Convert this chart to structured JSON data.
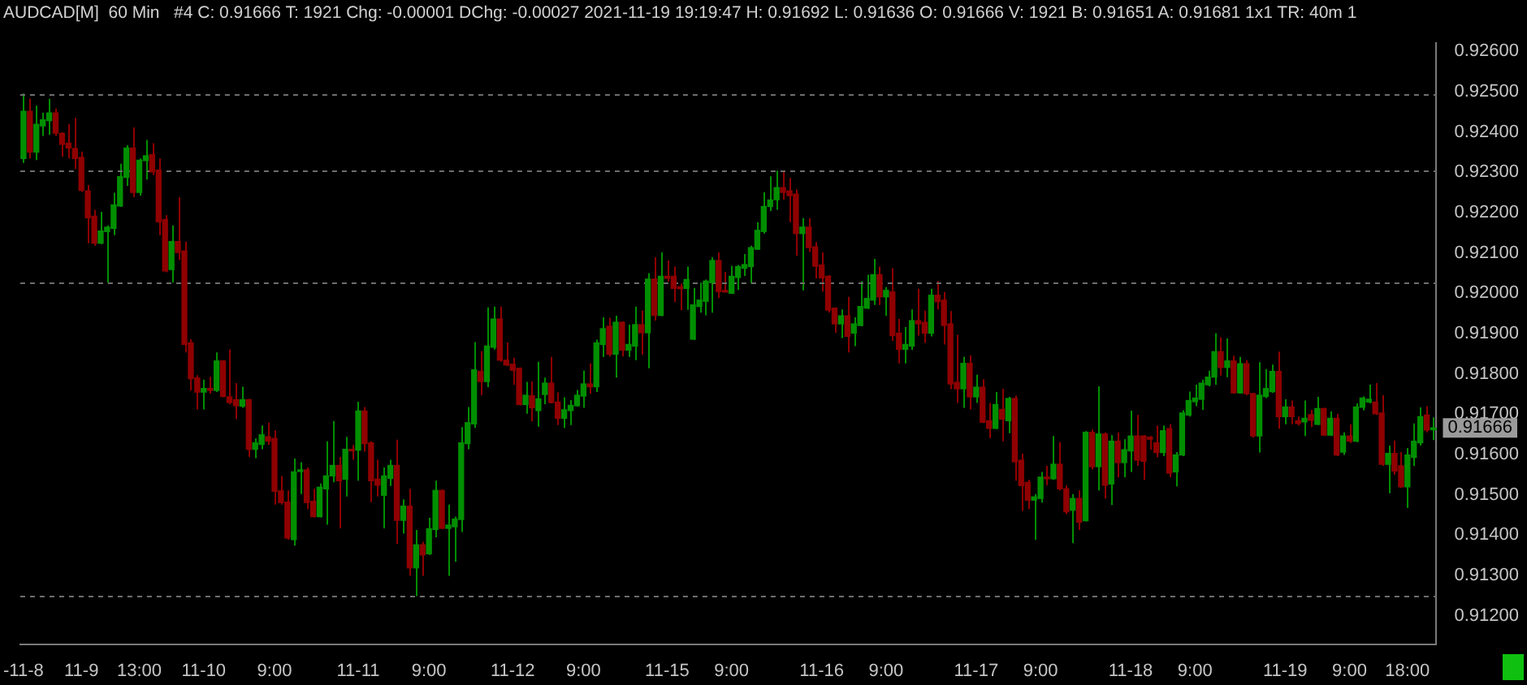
{
  "chart_data": {
    "type": "candlestick",
    "title": "AUDCAD[M]  60 Min   #4 C: 0.91666 T: 1921 Chg: -0.00001 DChg: -0.00027 2021-11-19 19:19:47 H: 0.91692 L: 0.91636 O: 0.91666 V: 1921 B: 0.91651 A: 0.91681 1x1 TR: 40m 1",
    "categories": [
      "-11-8",
      null,
      null,
      null,
      null,
      null,
      null,
      null,
      null,
      "11-9",
      null,
      null,
      null,
      null,
      null,
      null,
      null,
      null,
      "13:00",
      null,
      null,
      null,
      null,
      null,
      null,
      null,
      null,
      null,
      "11-10",
      null,
      null,
      null,
      null,
      null,
      null,
      null,
      null,
      null,
      null,
      "9:00",
      null,
      null,
      null,
      null,
      null,
      null,
      null,
      null,
      null,
      null,
      null,
      null,
      "11-11",
      null,
      null,
      null,
      null,
      null,
      null,
      null,
      null,
      null,
      null,
      "9:00",
      null,
      null,
      null,
      null,
      null,
      null,
      null,
      null,
      null,
      null,
      null,
      null,
      "11-12",
      null,
      null,
      null,
      null,
      null,
      null,
      null,
      null,
      null,
      null,
      "9:00",
      null,
      null,
      null,
      null,
      null,
      null,
      null,
      null,
      null,
      null,
      null,
      null,
      "11-15",
      null,
      null,
      null,
      null,
      null,
      null,
      null,
      null,
      null,
      "9:00",
      null,
      null,
      null,
      null,
      null,
      null,
      null,
      null,
      null,
      null,
      null,
      null,
      null,
      "11-16",
      null,
      null,
      null,
      null,
      null,
      null,
      null,
      null,
      null,
      "9:00",
      null,
      null,
      null,
      null,
      null,
      null,
      null,
      null,
      null,
      null,
      null,
      null,
      null,
      "11-17",
      null,
      null,
      null,
      null,
      null,
      null,
      null,
      null,
      null,
      "9:00",
      null,
      null,
      null,
      null,
      null,
      null,
      null,
      null,
      null,
      null,
      null,
      null,
      null,
      "11-18",
      null,
      null,
      null,
      null,
      null,
      null,
      null,
      null,
      null,
      "9:00",
      null,
      null,
      null,
      null,
      null,
      null,
      null,
      null,
      null,
      null,
      null,
      null,
      null,
      "11-19",
      null,
      null,
      null,
      null,
      null,
      null,
      null,
      null,
      null,
      "9:00",
      null,
      null,
      null,
      null,
      null,
      null,
      null,
      null,
      "18:00",
      null,
      null,
      null,
      null
    ],
    "ohlc": [
      [
        0.92334,
        0.92495,
        0.92323,
        0.92451
      ],
      [
        0.92451,
        0.92482,
        0.92334,
        0.9235
      ],
      [
        0.9235,
        0.92465,
        0.9233,
        0.92419
      ],
      [
        0.92415,
        0.92448,
        0.9239,
        0.9243
      ],
      [
        0.92428,
        0.92482,
        0.92393,
        0.92447
      ],
      [
        0.92447,
        0.92458,
        0.9239,
        0.92397
      ],
      [
        0.92396,
        0.92399,
        0.92338,
        0.92369
      ],
      [
        0.92372,
        0.92419,
        0.92334,
        0.9236
      ],
      [
        0.92359,
        0.92435,
        0.92308,
        0.92334
      ],
      [
        0.92337,
        0.92351,
        0.92251,
        0.92255
      ],
      [
        0.92254,
        0.92268,
        0.92124,
        0.92187
      ],
      [
        0.92191,
        0.92207,
        0.92118,
        0.92124
      ],
      [
        0.92124,
        0.92202,
        0.92122,
        0.92154
      ],
      [
        0.92153,
        0.92168,
        0.92026,
        0.92164
      ],
      [
        0.92161,
        0.92249,
        0.92144,
        0.92219
      ],
      [
        0.92216,
        0.92321,
        0.92214,
        0.92289
      ],
      [
        0.92287,
        0.92367,
        0.92266,
        0.9236
      ],
      [
        0.9236,
        0.92411,
        0.92238,
        0.9225
      ],
      [
        0.9225,
        0.92334,
        0.92242,
        0.9233
      ],
      [
        0.92329,
        0.9238,
        0.92282,
        0.92341
      ],
      [
        0.92344,
        0.92372,
        0.92293,
        0.92301
      ],
      [
        0.92305,
        0.92334,
        0.92144,
        0.92177
      ],
      [
        0.92183,
        0.92194,
        0.92052,
        0.92055
      ],
      [
        0.92059,
        0.92168,
        0.92026,
        0.92128
      ],
      [
        0.92128,
        0.92238,
        0.92082,
        0.92101
      ],
      [
        0.92105,
        0.92128,
        0.91853,
        0.91873
      ],
      [
        0.91877,
        0.91886,
        0.91759,
        0.91788
      ],
      [
        0.9179,
        0.91797,
        0.91712,
        0.91755
      ],
      [
        0.91755,
        0.91786,
        0.91712,
        0.91764
      ],
      [
        0.91764,
        0.91793,
        0.91751,
        0.91759
      ],
      [
        0.91759,
        0.91853,
        0.91755,
        0.91832
      ],
      [
        0.91832,
        0.91834,
        0.91742,
        0.91744
      ],
      [
        0.91743,
        0.91861,
        0.91725,
        0.91729
      ],
      [
        0.91736,
        0.91777,
        0.91688,
        0.91721
      ],
      [
        0.9172,
        0.91768,
        0.91716,
        0.91736
      ],
      [
        0.91736,
        0.91738,
        0.91594,
        0.91613
      ],
      [
        0.91613,
        0.9164,
        0.91591,
        0.91629
      ],
      [
        0.91625,
        0.91672,
        0.91613,
        0.91649
      ],
      [
        0.91644,
        0.91679,
        0.91624,
        0.91633
      ],
      [
        0.9164,
        0.9166,
        0.91476,
        0.91509
      ],
      [
        0.9151,
        0.91547,
        0.91476,
        0.91481
      ],
      [
        0.91482,
        0.91511,
        0.91389,
        0.91393
      ],
      [
        0.91389,
        0.9159,
        0.91374,
        0.91557
      ],
      [
        0.91558,
        0.91581,
        0.91502,
        0.91562
      ],
      [
        0.91562,
        0.91568,
        0.91465,
        0.91481
      ],
      [
        0.91484,
        0.91515,
        0.91444,
        0.91446
      ],
      [
        0.91446,
        0.91528,
        0.91444,
        0.91519
      ],
      [
        0.91515,
        0.91633,
        0.91426,
        0.91547
      ],
      [
        0.91547,
        0.91683,
        0.91531,
        0.91573
      ],
      [
        0.91573,
        0.91594,
        0.91417,
        0.91535
      ],
      [
        0.91539,
        0.91644,
        0.91496,
        0.91613
      ],
      [
        0.91613,
        0.91624,
        0.91587,
        0.91609
      ],
      [
        0.91611,
        0.91731,
        0.91535,
        0.91708
      ],
      [
        0.91708,
        0.91718,
        0.91607,
        0.91627
      ],
      [
        0.91629,
        0.91633,
        0.91482,
        0.91535
      ],
      [
        0.91539,
        0.91587,
        0.91496,
        0.91524
      ],
      [
        0.91499,
        0.91568,
        0.91417,
        0.91547
      ],
      [
        0.91541,
        0.91587,
        0.91522,
        0.91573
      ],
      [
        0.91573,
        0.91637,
        0.91378,
        0.91437
      ],
      [
        0.91437,
        0.91489,
        0.91404,
        0.91472
      ],
      [
        0.91472,
        0.91515,
        0.91299,
        0.91319
      ],
      [
        0.91319,
        0.91413,
        0.91249,
        0.91376
      ],
      [
        0.91376,
        0.91384,
        0.91299,
        0.91351
      ],
      [
        0.91354,
        0.91443,
        0.91351,
        0.91416
      ],
      [
        0.91414,
        0.91535,
        0.91395,
        0.91511
      ],
      [
        0.91511,
        0.91513,
        0.91416,
        0.91417
      ],
      [
        0.91417,
        0.91476,
        0.91299,
        0.91425
      ],
      [
        0.91421,
        0.91446,
        0.91334,
        0.9144
      ],
      [
        0.91439,
        0.91668,
        0.91408,
        0.91629
      ],
      [
        0.91627,
        0.91718,
        0.91613,
        0.91679
      ],
      [
        0.91676,
        0.91879,
        0.91666,
        0.9181
      ],
      [
        0.91806,
        0.91856,
        0.91747,
        0.91781
      ],
      [
        0.91781,
        0.91965,
        0.91767,
        0.91869
      ],
      [
        0.91866,
        0.91967,
        0.9186,
        0.91936
      ],
      [
        0.91936,
        0.91967,
        0.9183,
        0.91834
      ],
      [
        0.91834,
        0.91878,
        0.91819,
        0.91822
      ],
      [
        0.91824,
        0.9184,
        0.91773,
        0.91809
      ],
      [
        0.91814,
        0.91816,
        0.91722,
        0.91724
      ],
      [
        0.91724,
        0.9178,
        0.91701,
        0.91747
      ],
      [
        0.91746,
        0.91781,
        0.91682,
        0.91716
      ],
      [
        0.91709,
        0.9183,
        0.91669,
        0.91738
      ],
      [
        0.91749,
        0.91791,
        0.91725,
        0.91777
      ],
      [
        0.91777,
        0.91842,
        0.91727,
        0.91729
      ],
      [
        0.9173,
        0.91754,
        0.91673,
        0.9169
      ],
      [
        0.9169,
        0.91742,
        0.91666,
        0.91711
      ],
      [
        0.91709,
        0.91735,
        0.91673,
        0.91722
      ],
      [
        0.91721,
        0.9176,
        0.91719,
        0.91747
      ],
      [
        0.91745,
        0.91808,
        0.91716,
        0.91775
      ],
      [
        0.91775,
        0.91826,
        0.91751,
        0.91768
      ],
      [
        0.91768,
        0.91885,
        0.91755,
        0.91877
      ],
      [
        0.91873,
        0.9194,
        0.91842,
        0.91912
      ],
      [
        0.91918,
        0.91939,
        0.91843,
        0.91849
      ],
      [
        0.91849,
        0.91944,
        0.91791,
        0.91928
      ],
      [
        0.91928,
        0.9193,
        0.91843,
        0.91859
      ],
      [
        0.91859,
        0.91922,
        0.91842,
        0.91873
      ],
      [
        0.91869,
        0.91967,
        0.91834,
        0.91922
      ],
      [
        0.91922,
        0.91957,
        0.91847,
        0.91902
      ],
      [
        0.91902,
        0.9205,
        0.91814,
        0.92035
      ],
      [
        0.92035,
        0.92089,
        0.91932,
        0.91945
      ],
      [
        0.91945,
        0.92101,
        0.91943,
        0.92042
      ],
      [
        0.92042,
        0.92081,
        0.92029,
        0.92037
      ],
      [
        0.92042,
        0.92066,
        0.91978,
        0.92012
      ],
      [
        0.92016,
        0.92024,
        0.91958,
        0.92011
      ],
      [
        0.92012,
        0.92066,
        0.91959,
        0.92034
      ],
      [
        0.91886,
        0.92013,
        0.91884,
        0.91971
      ],
      [
        0.91967,
        0.92026,
        0.91952,
        0.91983
      ],
      [
        0.9198,
        0.92034,
        0.91945,
        0.9203
      ],
      [
        0.92026,
        0.92089,
        0.91952,
        0.92081
      ],
      [
        0.92081,
        0.92101,
        0.91988,
        0.92004
      ],
      [
        0.92007,
        0.92053,
        0.92002,
        0.92003
      ],
      [
        0.92,
        0.92068,
        0.91998,
        0.92042
      ],
      [
        0.92039,
        0.9207,
        0.92008,
        0.92066
      ],
      [
        0.92062,
        0.92097,
        0.92043,
        0.92071
      ],
      [
        0.92066,
        0.92118,
        0.92024,
        0.92113
      ],
      [
        0.92109,
        0.92176,
        0.92107,
        0.92156
      ],
      [
        0.92153,
        0.9225,
        0.92148,
        0.92215
      ],
      [
        0.92215,
        0.9229,
        0.92204,
        0.92231
      ],
      [
        0.92232,
        0.92304,
        0.92207,
        0.92262
      ],
      [
        0.92262,
        0.92301,
        0.92232,
        0.9225
      ],
      [
        0.92254,
        0.92286,
        0.92176,
        0.92242
      ],
      [
        0.92246,
        0.92257,
        0.92093,
        0.92148
      ],
      [
        0.92148,
        0.92186,
        0.92007,
        0.92164
      ],
      [
        0.92164,
        0.92186,
        0.92102,
        0.92113
      ],
      [
        0.92115,
        0.92127,
        0.92037,
        0.92067
      ],
      [
        0.9207,
        0.92101,
        0.92004,
        0.92038
      ],
      [
        0.92042,
        0.92045,
        0.91952,
        0.91958
      ],
      [
        0.91963,
        0.91965,
        0.91902,
        0.91924
      ],
      [
        0.91924,
        0.9196,
        0.91889,
        0.91944
      ],
      [
        0.91944,
        0.91991,
        0.91853,
        0.91893
      ],
      [
        0.91901,
        0.9194,
        0.91869,
        0.91924
      ],
      [
        0.9192,
        0.9203,
        0.91918,
        0.91967
      ],
      [
        0.91963,
        0.92046,
        0.91961,
        0.91987
      ],
      [
        0.91983,
        0.92085,
        0.91971,
        0.92046
      ],
      [
        0.92046,
        0.92066,
        0.91971,
        0.91991
      ],
      [
        0.91991,
        0.92015,
        0.91944,
        0.92007
      ],
      [
        0.92003,
        0.92062,
        0.91882,
        0.91895
      ],
      [
        0.91901,
        0.91936,
        0.91826,
        0.91861
      ],
      [
        0.91861,
        0.91916,
        0.91826,
        0.91873
      ],
      [
        0.91869,
        0.9196,
        0.91859,
        0.91932
      ],
      [
        0.91932,
        0.92011,
        0.91895,
        0.91924
      ],
      [
        0.91928,
        0.91957,
        0.91877,
        0.91901
      ],
      [
        0.91901,
        0.92011,
        0.91893,
        0.91995
      ],
      [
        0.91995,
        0.9203,
        0.9196,
        0.91979
      ],
      [
        0.91983,
        0.92003,
        0.91873,
        0.9192
      ],
      [
        0.91924,
        0.91956,
        0.91762,
        0.91775
      ],
      [
        0.91779,
        0.91897,
        0.91728,
        0.91763
      ],
      [
        0.91763,
        0.91842,
        0.91716,
        0.91826
      ],
      [
        0.91826,
        0.91846,
        0.91712,
        0.91743
      ],
      [
        0.91743,
        0.91798,
        0.91728,
        0.91767
      ],
      [
        0.91767,
        0.91787,
        0.91678,
        0.9168
      ],
      [
        0.91684,
        0.91728,
        0.91641,
        0.91665
      ],
      [
        0.91665,
        0.91755,
        0.91663,
        0.91724
      ],
      [
        0.91712,
        0.91763,
        0.91633,
        0.91688
      ],
      [
        0.91684,
        0.91743,
        0.91653,
        0.91739
      ],
      [
        0.91739,
        0.91746,
        0.91535,
        0.91582
      ],
      [
        0.91586,
        0.91602,
        0.9146,
        0.91523
      ],
      [
        0.91531,
        0.91537,
        0.91465,
        0.91487
      ],
      [
        0.91487,
        0.91502,
        0.91389,
        0.91495
      ],
      [
        0.91491,
        0.91557,
        0.91481,
        0.91544
      ],
      [
        0.91544,
        0.91572,
        0.91524,
        0.9154
      ],
      [
        0.9154,
        0.91646,
        0.91537,
        0.91576
      ],
      [
        0.91576,
        0.91631,
        0.91511,
        0.91515
      ],
      [
        0.91515,
        0.91524,
        0.91452,
        0.91458
      ],
      [
        0.91462,
        0.91502,
        0.9138,
        0.91491
      ],
      [
        0.91491,
        0.91511,
        0.91413,
        0.91432
      ],
      [
        0.91436,
        0.91658,
        0.91434,
        0.91655
      ],
      [
        0.91655,
        0.91662,
        0.91563,
        0.9157
      ],
      [
        0.9157,
        0.91769,
        0.91511,
        0.91651
      ],
      [
        0.91651,
        0.91655,
        0.91491,
        0.91524
      ],
      [
        0.91527,
        0.91648,
        0.91475,
        0.91633
      ],
      [
        0.91633,
        0.91655,
        0.91544,
        0.9158
      ],
      [
        0.9158,
        0.91638,
        0.91544,
        0.91612
      ],
      [
        0.91609,
        0.91709,
        0.91557,
        0.91646
      ],
      [
        0.91646,
        0.91698,
        0.91572,
        0.91586
      ],
      [
        0.91646,
        0.91648,
        0.91537,
        0.91583
      ],
      [
        0.91643,
        0.91646,
        0.91612,
        0.91638
      ],
      [
        0.91629,
        0.91672,
        0.91593,
        0.91605
      ],
      [
        0.91605,
        0.91672,
        0.91596,
        0.91659
      ],
      [
        0.91664,
        0.91675,
        0.91544,
        0.91554
      ],
      [
        0.91557,
        0.91606,
        0.91521,
        0.91599
      ],
      [
        0.91599,
        0.9171,
        0.91596,
        0.91703
      ],
      [
        0.91698,
        0.91756,
        0.91694,
        0.91734
      ],
      [
        0.91731,
        0.91773,
        0.9172,
        0.9174
      ],
      [
        0.91737,
        0.91786,
        0.91711,
        0.91777
      ],
      [
        0.91773,
        0.91808,
        0.91769,
        0.91792
      ],
      [
        0.91792,
        0.91901,
        0.91773,
        0.91855
      ],
      [
        0.91855,
        0.91891,
        0.91796,
        0.91816
      ],
      [
        0.91816,
        0.91888,
        0.91792,
        0.91832
      ],
      [
        0.91832,
        0.91845,
        0.91751,
        0.91753
      ],
      [
        0.91753,
        0.91842,
        0.91751,
        0.91825
      ],
      [
        0.91825,
        0.91834,
        0.91747,
        0.91751
      ],
      [
        0.91751,
        0.91753,
        0.91642,
        0.91646
      ],
      [
        0.91646,
        0.91829,
        0.91605,
        0.91747
      ],
      [
        0.91744,
        0.91812,
        0.9174,
        0.91764
      ],
      [
        0.91756,
        0.91823,
        0.91753,
        0.91806
      ],
      [
        0.91806,
        0.91855,
        0.91664,
        0.91694
      ],
      [
        0.91694,
        0.91737,
        0.91675,
        0.91718
      ],
      [
        0.91718,
        0.91734,
        0.91675,
        0.91694
      ],
      [
        0.91684,
        0.91694,
        0.91672,
        0.91677
      ],
      [
        0.91681,
        0.91734,
        0.91646,
        0.9169
      ],
      [
        0.91699,
        0.91711,
        0.91668,
        0.91685
      ],
      [
        0.91675,
        0.91743,
        0.91673,
        0.91714
      ],
      [
        0.91714,
        0.91716,
        0.91646,
        0.91648
      ],
      [
        0.91648,
        0.91707,
        0.91646,
        0.9169
      ],
      [
        0.9169,
        0.91701,
        0.91596,
        0.91599
      ],
      [
        0.91606,
        0.91655,
        0.91599,
        0.91646
      ],
      [
        0.91646,
        0.91675,
        0.91629,
        0.91633
      ],
      [
        0.91633,
        0.91727,
        0.91631,
        0.91718
      ],
      [
        0.91717,
        0.91744,
        0.9171,
        0.9174
      ],
      [
        0.9173,
        0.91773,
        0.91727,
        0.91737
      ],
      [
        0.9173,
        0.91777,
        0.91698,
        0.91701
      ],
      [
        0.91703,
        0.91747,
        0.91572,
        0.91576
      ],
      [
        0.91576,
        0.91622,
        0.91504,
        0.91603
      ],
      [
        0.91603,
        0.91635,
        0.9155,
        0.91559
      ],
      [
        0.91572,
        0.91606,
        0.91517,
        0.9152
      ],
      [
        0.9152,
        0.91616,
        0.91468,
        0.91599
      ],
      [
        0.91593,
        0.91677,
        0.91572,
        0.91633
      ],
      [
        0.91629,
        0.91717,
        0.91622,
        0.91694
      ],
      [
        0.91698,
        0.9172,
        0.91655,
        0.91661
      ],
      [
        0.91666,
        0.91692,
        0.91636,
        0.91666
      ]
    ],
    "colors": [
      "#008f00",
      "#8f0000",
      "#008f00",
      "#008f00",
      "#008f00",
      "#8f0000",
      "#8f0000",
      "#8f0000",
      "#8f0000",
      "#8f0000",
      "#8f0000",
      "#8f0000",
      "#008f00",
      "#008f00",
      "#008f00",
      "#008f00",
      "#008f00",
      "#8f0000",
      "#008f00",
      "#008f00",
      "#8f0000",
      "#8f0000",
      "#8f0000",
      "#008f00",
      "#8f0000",
      "#8f0000",
      "#8f0000",
      "#8f0000",
      "#008f00",
      "#8f0000",
      "#008f00",
      "#8f0000",
      "#8f0000",
      "#8f0000",
      "#008f00",
      "#8f0000",
      "#008f00",
      "#008f00",
      "#8f0000",
      "#8f0000",
      "#8f0000",
      "#8f0000",
      "#008f00",
      "#008f00",
      "#8f0000",
      "#8f0000",
      "#008f00",
      "#008f00",
      "#008f00",
      "#8f0000",
      "#008f00",
      "#8f0000",
      "#008f00",
      "#8f0000",
      "#8f0000",
      "#8f0000",
      "#008f00",
      "#008f00",
      "#8f0000",
      "#008f00",
      "#8f0000",
      "#008f00",
      "#8f0000",
      "#008f00",
      "#008f00",
      "#8f0000",
      "#008f00",
      "#008f00",
      "#008f00",
      "#008f00",
      "#008f00",
      "#8f0000",
      "#008f00",
      "#008f00",
      "#8f0000",
      "#8f0000",
      "#8f0000",
      "#8f0000",
      "#008f00",
      "#8f0000",
      "#008f00",
      "#008f00",
      "#8f0000",
      "#8f0000",
      "#008f00",
      "#008f00",
      "#008f00",
      "#008f00",
      "#8f0000",
      "#008f00",
      "#008f00",
      "#8f0000",
      "#008f00",
      "#8f0000",
      "#008f00",
      "#008f00",
      "#8f0000",
      "#008f00",
      "#8f0000",
      "#008f00",
      "#8f0000",
      "#8f0000",
      "#8f0000",
      "#008f00",
      "#008f00",
      "#008f00",
      "#008f00",
      "#008f00",
      "#8f0000",
      "#8f0000",
      "#008f00",
      "#008f00",
      "#008f00",
      "#008f00",
      "#008f00",
      "#008f00",
      "#008f00",
      "#008f00",
      "#8f0000",
      "#8f0000",
      "#8f0000",
      "#008f00",
      "#8f0000",
      "#8f0000",
      "#8f0000",
      "#8f0000",
      "#8f0000",
      "#008f00",
      "#8f0000",
      "#008f00",
      "#008f00",
      "#008f00",
      "#008f00",
      "#8f0000",
      "#008f00",
      "#8f0000",
      "#8f0000",
      "#008f00",
      "#008f00",
      "#8f0000",
      "#8f0000",
      "#008f00",
      "#8f0000",
      "#8f0000",
      "#8f0000",
      "#8f0000",
      "#008f00",
      "#8f0000",
      "#008f00",
      "#8f0000",
      "#8f0000",
      "#008f00",
      "#8f0000",
      "#008f00",
      "#8f0000",
      "#8f0000",
      "#8f0000",
      "#008f00",
      "#008f00",
      "#8f0000",
      "#008f00",
      "#8f0000",
      "#8f0000",
      "#008f00",
      "#8f0000",
      "#008f00",
      "#8f0000",
      "#008f00",
      "#8f0000",
      "#008f00",
      "#8f0000",
      "#008f00",
      "#008f00",
      "#8f0000",
      "#8f0000",
      "#8f0000",
      "#8f0000",
      "#008f00",
      "#8f0000",
      "#008f00",
      "#008f00",
      "#008f00",
      "#008f00",
      "#008f00",
      "#008f00",
      "#008f00",
      "#8f0000",
      "#008f00",
      "#8f0000",
      "#008f00",
      "#8f0000",
      "#8f0000",
      "#008f00",
      "#008f00",
      "#008f00",
      "#8f0000",
      "#008f00",
      "#8f0000",
      "#8f0000",
      "#008f00",
      "#8f0000",
      "#008f00",
      "#8f0000",
      "#008f00",
      "#8f0000",
      "#008f00",
      "#8f0000",
      "#008f00",
      "#008f00",
      "#008f00",
      "#8f0000",
      "#8f0000",
      "#008f00",
      "#8f0000",
      "#8f0000",
      "#008f00",
      "#008f00",
      "#008f00",
      "#8f0000",
      "#008f00"
    ],
    "ylim": [
      0.9113,
      0.9262
    ],
    "yticks": [
      {
        "value": 0.912,
        "label": "0.91200"
      },
      {
        "value": 0.913,
        "label": "0.91300"
      },
      {
        "value": 0.914,
        "label": "0.91400"
      },
      {
        "value": 0.915,
        "label": "0.91500"
      },
      {
        "value": 0.916,
        "label": "0.91600"
      },
      {
        "value": 0.917,
        "label": "0.91700"
      },
      {
        "value": 0.918,
        "label": "0.91800"
      },
      {
        "value": 0.919,
        "label": "0.91900"
      },
      {
        "value": 0.92,
        "label": "0.92000"
      },
      {
        "value": 0.921,
        "label": "0.92100"
      },
      {
        "value": 0.922,
        "label": "0.92200"
      },
      {
        "value": 0.923,
        "label": "0.92300"
      },
      {
        "value": 0.924,
        "label": "0.92400"
      },
      {
        "value": 0.925,
        "label": "0.92500"
      },
      {
        "value": 0.926,
        "label": "0.92600"
      }
    ],
    "ref_lines": [
      {
        "axis": "y",
        "value": 0.92495,
        "color": "#6e6e6e",
        "line_style": "dashed"
      },
      {
        "axis": "y",
        "value": 0.92304,
        "color": "#6e6e6e",
        "line_style": "dashed"
      },
      {
        "axis": "y",
        "value": 0.92026,
        "color": "#6e6e6e",
        "line_style": "dashed"
      },
      {
        "axis": "y",
        "value": 0.91249,
        "color": "#6e6e6e",
        "line_style": "dashed"
      }
    ],
    "annotations": [
      "0.91666"
    ]
  }
}
